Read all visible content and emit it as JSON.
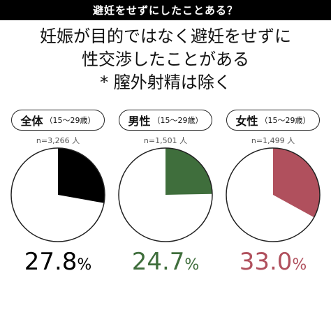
{
  "banner": "避妊をせずにしたことある？",
  "title_lines": [
    "妊娠が目的ではなく避妊をせずに",
    "性交渉したことがある",
    "* 膣外射精は除く"
  ],
  "chart_data": [
    {
      "type": "pie",
      "group": "全体",
      "age": "（15～29歳）",
      "n": "n=3,266 人",
      "value": 27.8,
      "value_label": "27.8",
      "unit": "%",
      "color": "#000000"
    },
    {
      "type": "pie",
      "group": "男性",
      "age": "（15～29歳）",
      "n": "n=1,501 人",
      "value": 24.7,
      "value_label": "24.7",
      "unit": "%",
      "color": "#3f6e3c"
    },
    {
      "type": "pie",
      "group": "女性",
      "age": "（15～29歳）",
      "n": "n=1,499 人",
      "value": 33.0,
      "value_label": "33.0",
      "unit": "%",
      "color": "#b0505d"
    }
  ],
  "colors": {
    "banner_bg": "#000000",
    "pie_remainder": "#ffffff",
    "pie_outline": "#222222"
  }
}
